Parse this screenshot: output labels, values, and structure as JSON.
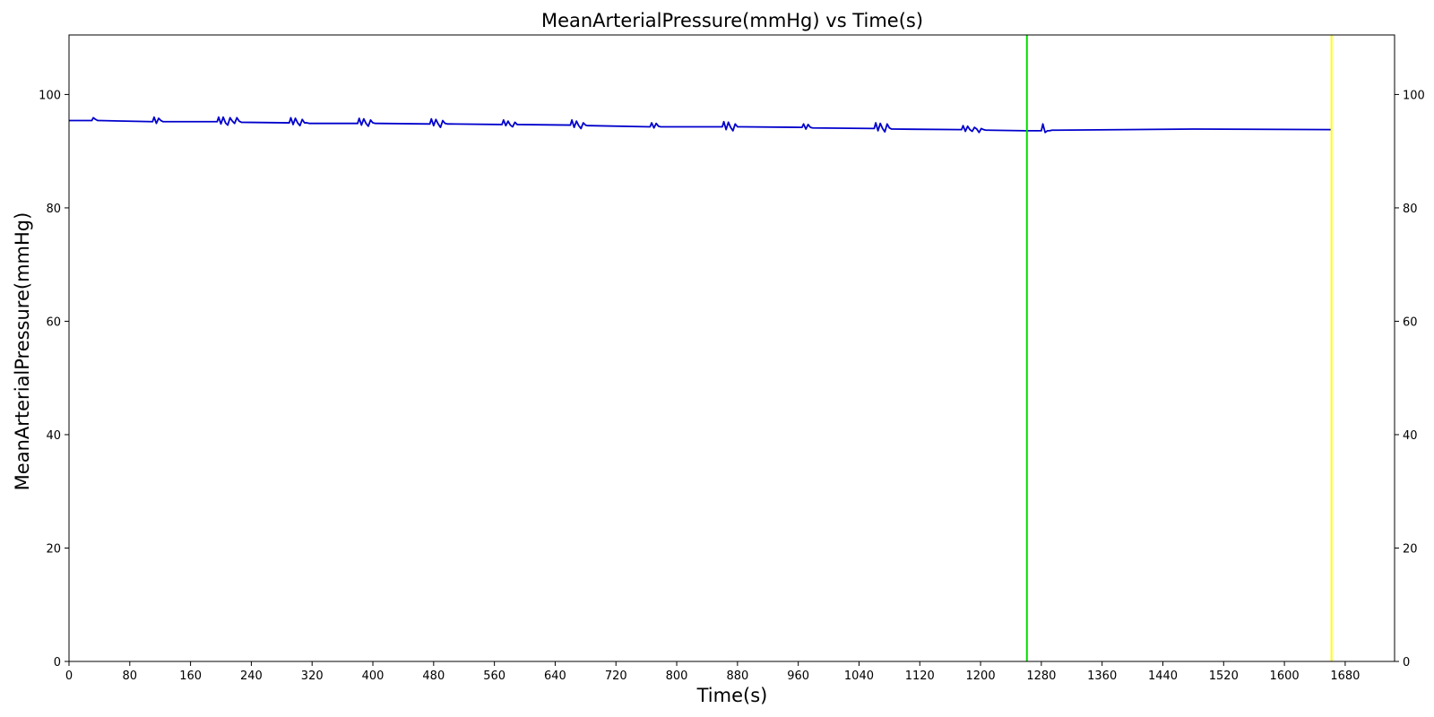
{
  "chart_data": {
    "type": "line",
    "title": "MeanArterialPressure(mmHg) vs Time(s)",
    "xlabel": "Time(s)",
    "ylabel": "MeanArterialPressure(mmHg)",
    "xlim": [
      0,
      1745
    ],
    "ylim": [
      0,
      110.5
    ],
    "x_ticks": [
      0,
      80,
      160,
      240,
      320,
      400,
      480,
      560,
      640,
      720,
      800,
      880,
      960,
      1040,
      1120,
      1200,
      1280,
      1360,
      1440,
      1520,
      1600,
      1680
    ],
    "x_tick_labels": [
      "0",
      "80",
      "160",
      "240",
      "320",
      "400",
      "480",
      "560",
      "640",
      "720",
      "800",
      "880",
      "960",
      "1040",
      "1120",
      "1200",
      "1280",
      "1360",
      "1440",
      "1520",
      "1600",
      "1680"
    ],
    "y_ticks": [
      0,
      20,
      40,
      60,
      80,
      100
    ],
    "y_tick_labels": [
      "0",
      "20",
      "40",
      "60",
      "80",
      "100"
    ],
    "right_axis_ticks": true,
    "grid": false,
    "legend": "none",
    "vlines": [
      {
        "x": 1261,
        "color": "#00dd00"
      },
      {
        "x": 1662,
        "color": "#ffff00"
      }
    ],
    "series": [
      {
        "color": "#0000cc",
        "x": [
          0,
          30,
          32,
          35,
          38,
          40,
          110,
          112,
          115,
          118,
          121,
          124,
          127,
          130,
          195,
          197,
          200,
          203,
          206,
          209,
          212,
          215,
          218,
          221,
          224,
          227,
          290,
          292,
          295,
          298,
          301,
          304,
          307,
          310,
          313,
          316,
          380,
          382,
          385,
          388,
          391,
          394,
          397,
          400,
          403,
          406,
          475,
          477,
          480,
          483,
          486,
          489,
          492,
          495,
          498,
          501,
          570,
          572,
          575,
          578,
          581,
          584,
          587,
          590,
          660,
          662,
          665,
          668,
          671,
          674,
          677,
          680,
          683,
          686,
          765,
          767,
          770,
          773,
          776,
          779,
          860,
          862,
          865,
          868,
          871,
          874,
          877,
          880,
          883,
          886,
          965,
          967,
          970,
          973,
          976,
          979,
          1060,
          1062,
          1065,
          1068,
          1071,
          1074,
          1077,
          1080,
          1083,
          1086,
          1175,
          1177,
          1180,
          1183,
          1186,
          1189,
          1192,
          1195,
          1198,
          1201,
          1204,
          1207,
          1210,
          1260,
          1280,
          1282,
          1285,
          1288,
          1291,
          1294,
          1300,
          1480,
          1662
        ],
        "y": [
          95.4,
          95.4,
          95.9,
          95.6,
          95.4,
          95.4,
          95.2,
          96.0,
          94.9,
          95.8,
          95.4,
          95.2,
          95.2,
          95.2,
          95.2,
          96.0,
          94.8,
          96.0,
          95.0,
          94.6,
          95.9,
          95.3,
          94.9,
          95.9,
          95.3,
          95.1,
          95.0,
          95.9,
          94.7,
          95.8,
          95.0,
          94.5,
          95.6,
          95.0,
          95.0,
          94.9,
          94.9,
          95.8,
          94.6,
          95.7,
          94.9,
          94.4,
          95.5,
          95.0,
          94.9,
          94.9,
          94.8,
          95.7,
          94.5,
          95.6,
          94.8,
          94.2,
          95.4,
          94.9,
          94.8,
          94.8,
          94.7,
          95.5,
          94.5,
          95.3,
          94.6,
          94.3,
          95.1,
          94.7,
          94.6,
          95.5,
          94.2,
          95.3,
          94.5,
          94.0,
          95.0,
          94.6,
          94.5,
          94.5,
          94.3,
          95.0,
          94.1,
          94.9,
          94.4,
          94.3,
          94.3,
          95.2,
          93.8,
          95.1,
          94.2,
          93.6,
          94.8,
          94.3,
          94.3,
          94.3,
          94.2,
          94.8,
          93.9,
          94.7,
          94.2,
          94.1,
          94.0,
          95.0,
          93.6,
          94.9,
          94.0,
          93.4,
          94.8,
          94.1,
          93.9,
          93.9,
          93.8,
          94.5,
          93.5,
          94.4,
          93.8,
          93.5,
          94.2,
          93.9,
          93.3,
          94.0,
          93.8,
          93.7,
          93.7,
          93.6,
          93.6,
          94.8,
          93.3,
          93.6,
          93.6,
          93.7,
          93.7,
          93.9,
          93.8
        ]
      }
    ]
  }
}
